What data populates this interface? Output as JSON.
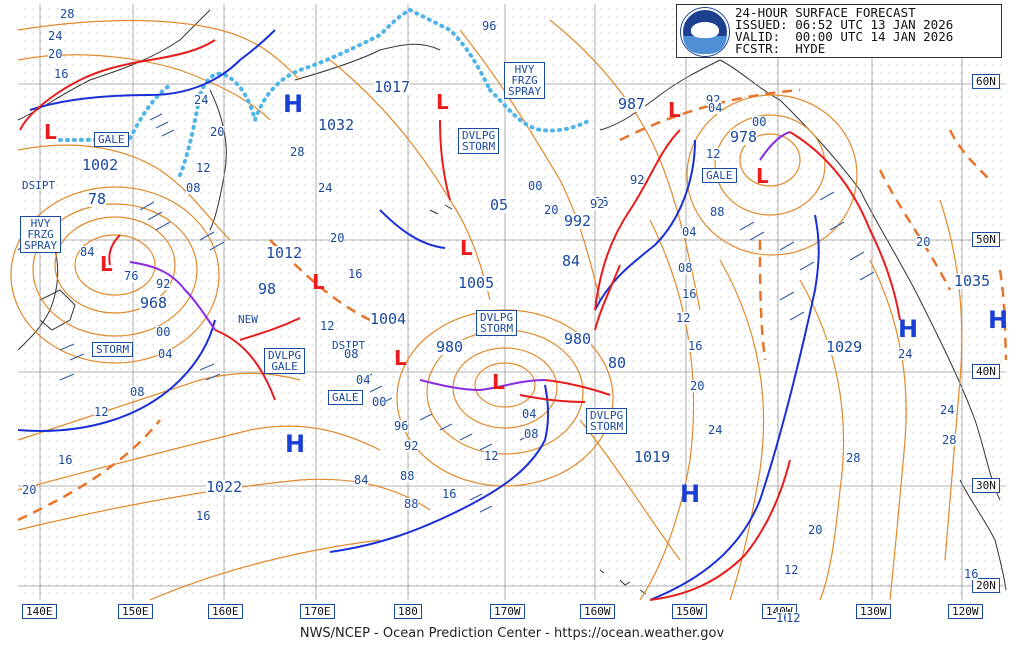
{
  "header": {
    "line1": "24-HOUR SURFACE FORECAST",
    "line2": "ISSUED: 06:52 UTC 13 JAN 2026",
    "line3": "VALID:  00:00 UTC 14 JAN 2026",
    "line4": "FCSTR:  HYDE",
    "logo_name": "noaa-logo"
  },
  "footer": "NWS/NCEP - Ocean Prediction Center - https://ocean.weather.gov",
  "longitude_labels": [
    "140E",
    "150E",
    "160E",
    "170E",
    "180",
    "170W",
    "160W",
    "150W",
    "140W",
    "130W",
    "120W"
  ],
  "latitude_labels": [
    "60N",
    "50N",
    "40N",
    "30N",
    "20N"
  ],
  "high_centers": [
    "H",
    "H",
    "H",
    "H",
    "H"
  ],
  "low_centers": [
    "L",
    "L",
    "L",
    "L",
    "L",
    "L",
    "L",
    "L",
    "L"
  ],
  "pressure_boxes": [
    "1017",
    "1032",
    "1002",
    "78",
    "1012",
    "98",
    "968",
    "1005",
    "1004",
    "980",
    "980",
    "05",
    "992",
    "84",
    "987",
    "978",
    "1029",
    "1035",
    "1019",
    "1022",
    "80"
  ],
  "warning_boxes": [
    "GALE",
    "HVY FRZG SPRAY",
    "DVLPG STORM",
    "GALE",
    "HVY FRZG SPRAY",
    "STORM",
    "DVLPG GALE",
    "GALE",
    "DVLPG STORM",
    "DVLPG STORM"
  ],
  "plain_labels": [
    "DSIPT",
    "DSIPT",
    "NEW"
  ],
  "isobar_labels": [
    "28",
    "24",
    "20",
    "16",
    "24",
    "20",
    "12",
    "08",
    "28",
    "24",
    "20",
    "16",
    "12",
    "08",
    "04",
    "00",
    "96",
    "92",
    "88",
    "84",
    "76",
    "92",
    "00",
    "04",
    "08",
    "12",
    "16",
    "20",
    "16",
    "88",
    "92",
    "96",
    "04",
    "08",
    "12",
    "16",
    "20",
    "24",
    "28",
    "24",
    "16",
    "20",
    "12",
    "16",
    "20",
    "92",
    "96",
    "00",
    "04",
    "08",
    "12",
    "16",
    "88",
    "84",
    "92",
    "00",
    "04",
    "12",
    "16",
    "24",
    "20",
    "28",
    "12"
  ],
  "colors": {
    "isobar": "#e08a2c",
    "text_blue": "#1a4aa0",
    "cold_front": "#1a2fd6",
    "warm_front": "#e81c1c",
    "occluded_front": "#8a2be2",
    "ice_edge": "#4fb4e8",
    "grid": "#9a9a9a",
    "track_arrow": "#e81c1c",
    "wind_barb": "#3a5fa0",
    "high_letter": "#1a3fd6",
    "low_letter": "#e81c1c"
  }
}
